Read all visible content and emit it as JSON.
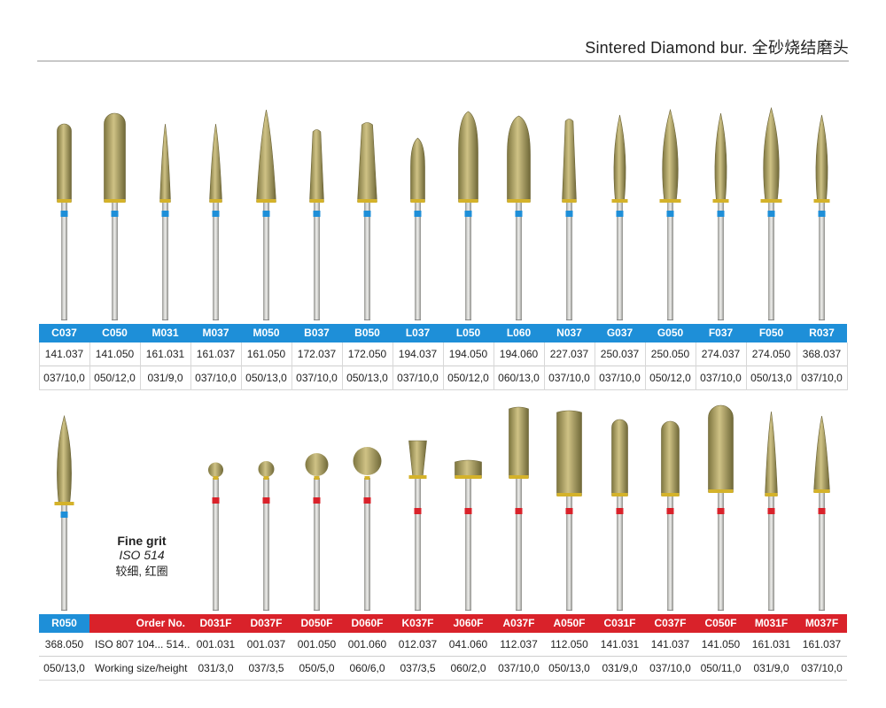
{
  "header": {
    "title": "Sintered Diamond bur. 全砂烧结磨头"
  },
  "table1": {
    "codes": [
      "C037",
      "C050",
      "M031",
      "M037",
      "M050",
      "B037",
      "B050",
      "L037",
      "L050",
      "L060",
      "N037",
      "G037",
      "G050",
      "F037",
      "F050",
      "R037"
    ],
    "order_numbers": [
      "141.037",
      "141.050",
      "161.031",
      "161.037",
      "161.050",
      "172.037",
      "172.050",
      "194.037",
      "194.050",
      "194.060",
      "227.037",
      "250.037",
      "250.050",
      "274.037",
      "274.050",
      "368.037"
    ],
    "sizes": [
      "037/10,0",
      "050/12,0",
      "031/9,0",
      "037/10,0",
      "050/13,0",
      "037/10,0",
      "050/13,0",
      "037/10,0",
      "050/12,0",
      "060/13,0",
      "037/10,0",
      "037/10,0",
      "050/12,0",
      "037/10,0",
      "050/13,0",
      "037/10,0"
    ]
  },
  "table2": {
    "first": {
      "code": "R050",
      "order": "368.050",
      "size": "050/13,0"
    },
    "labels": {
      "header": "Order No.",
      "iso": "ISO 807 104... 514...",
      "size": "Working size/height"
    },
    "codes": [
      "D031F",
      "D037F",
      "D050F",
      "D060F",
      "K037F",
      "J060F",
      "A037F",
      "A050F",
      "C031F",
      "C037F",
      "C050F",
      "M031F",
      "M037F"
    ],
    "order_numbers": [
      "001.031",
      "001.037",
      "001.050",
      "001.060",
      "012.037",
      "041.060",
      "112.037",
      "112.050",
      "141.031",
      "141.037",
      "141.050",
      "161.031",
      "161.037"
    ],
    "sizes": [
      "031/3,0",
      "037/3,5",
      "050/5,0",
      "060/6,0",
      "037/3,5",
      "060/2,0",
      "037/10,0",
      "050/13,0",
      "031/9,0",
      "037/10,0",
      "050/11,0",
      "031/9,0",
      "037/10,0"
    ]
  },
  "note": {
    "line1": "Fine grit",
    "line2": "ISO 514",
    "line3": "较细, 红圈"
  },
  "colors": {
    "blue_band": "#1e8fd8",
    "red_band": "#d9222a",
    "diamond": "#b3a55e",
    "gold_collar": "#d4b22a",
    "shank": "#c9c9c6"
  }
}
